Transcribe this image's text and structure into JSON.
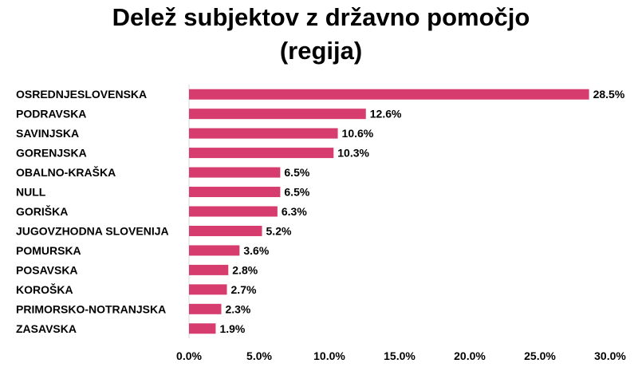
{
  "chart_data": {
    "type": "bar",
    "orientation": "horizontal",
    "title_lines": [
      "Delež subjektov z državno pomočjo",
      "(regija)"
    ],
    "categories": [
      "OSREDNJESLOVENSKA",
      "PODRAVSKA",
      "SAVINJSKA",
      "GORENJSKA",
      "OBALNO-KRAŠKA",
      "NULL",
      "GORIŠKA",
      "JUGOVZHODNA SLOVENIJA",
      "POMURSKA",
      "POSAVSKA",
      "KOROŠKA",
      "PRIMORSKO-NOTRANJSKA",
      "ZASAVSKA"
    ],
    "values": [
      28.5,
      12.6,
      10.6,
      10.3,
      6.5,
      6.5,
      6.3,
      5.2,
      3.6,
      2.8,
      2.7,
      2.3,
      1.9
    ],
    "data_labels": [
      "28.5%",
      "12.6%",
      "10.6%",
      "10.3%",
      "6.5%",
      "6.5%",
      "6.3%",
      "5.2%",
      "3.6%",
      "2.8%",
      "2.7%",
      "2.3%",
      "1.9%"
    ],
    "x_ticks": [
      "0.0%",
      "5.0%",
      "10.0%",
      "15.0%",
      "20.0%",
      "25.0%",
      "30.0%"
    ],
    "x_tick_values": [
      0,
      5,
      10,
      15,
      20,
      25,
      30
    ],
    "xlim": [
      0,
      30
    ],
    "xlabel": "",
    "ylabel": "",
    "grid": false,
    "legend": "none",
    "bar_color": "#d63c6e"
  }
}
